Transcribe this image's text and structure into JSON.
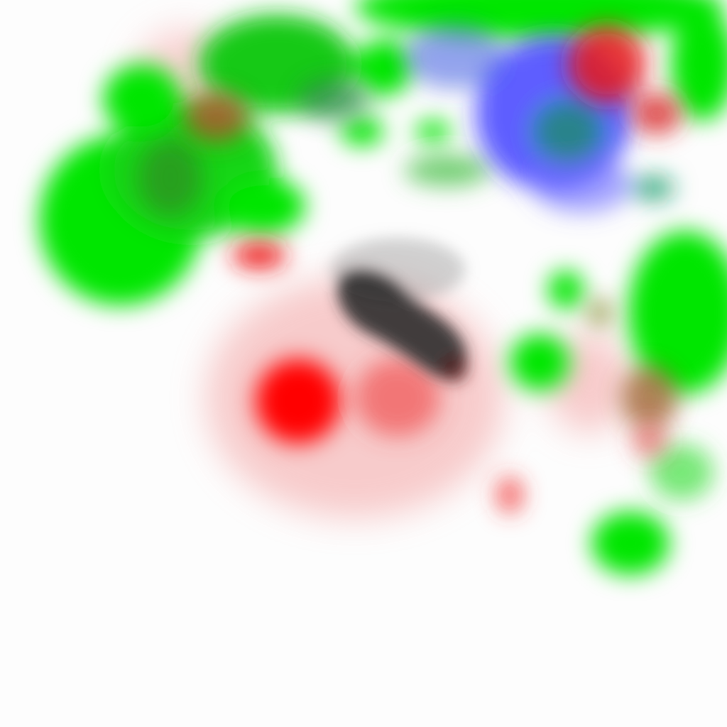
{
  "image": {
    "description_free": true,
    "palette": {
      "green": "#00e600",
      "red": "#ff0000",
      "blue": "#2a2aff",
      "dark": "#2b2b2b",
      "pink": "#f6a0a0",
      "background": "#fdfdfd"
    },
    "regions": [
      {
        "name": "green-blob",
        "color": "#00e600"
      },
      {
        "name": "red-blob",
        "color": "#ff0000"
      },
      {
        "name": "blue-blob",
        "color": "#2a2aff"
      },
      {
        "name": "dark-blob",
        "color": "#2b2b2b"
      },
      {
        "name": "pink-haze",
        "color": "#f6a0a0"
      }
    ]
  }
}
